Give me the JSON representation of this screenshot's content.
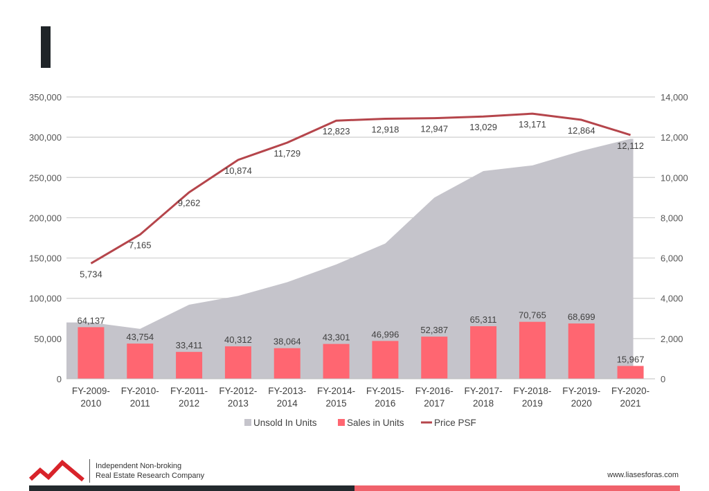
{
  "colors": {
    "unsold_area": "#c5c4cb",
    "sales_bar": "#ff6671",
    "price_line": "#b5454b",
    "grid": "#cfcfcf",
    "logo_red": "#d8232a",
    "band_dark": "#232a2e",
    "band_red": "#f0626b"
  },
  "footer": {
    "tagline_line1": "Independent Non-broking",
    "tagline_line2": "Real Estate Research Company",
    "url": "www.liasesforas.com",
    "logo_icon": "mountain-logo-icon"
  },
  "chart_data": {
    "type": "bar",
    "categories": [
      [
        "FY-2009-",
        "2010"
      ],
      [
        "FY-2010-",
        "2011"
      ],
      [
        "FY-2011-",
        "2012"
      ],
      [
        "FY-2012-",
        "2013"
      ],
      [
        "FY-2013-",
        "2014"
      ],
      [
        "FY-2014-",
        "2015"
      ],
      [
        "FY-2015-",
        "2016"
      ],
      [
        "FY-2016-",
        "2017"
      ],
      [
        "FY-2017-",
        "2018"
      ],
      [
        "FY-2018-",
        "2019"
      ],
      [
        "FY-2019-",
        "2020"
      ],
      [
        "FY-2020-",
        "2021"
      ]
    ],
    "series": [
      {
        "name": "Unsold In Units",
        "type": "area",
        "axis": "left",
        "values": [
          70000,
          62000,
          92000,
          103000,
          120000,
          142000,
          168000,
          225000,
          258000,
          265000,
          283000,
          298000
        ]
      },
      {
        "name": "Sales in Units",
        "type": "bar",
        "axis": "left",
        "values": [
          64137,
          43754,
          33411,
          40312,
          38064,
          43301,
          46996,
          52387,
          65311,
          70765,
          68699,
          15967
        ],
        "labels": [
          "64,137",
          "43,754",
          "33,411",
          "40,312",
          "38,064",
          "43,301",
          "46,996",
          "52,387",
          "65,311",
          "70,765",
          "68,699",
          "15,967"
        ]
      },
      {
        "name": "Price PSF",
        "type": "line",
        "axis": "right",
        "values": [
          5734,
          7165,
          9262,
          10874,
          11729,
          12823,
          12918,
          12947,
          13029,
          13171,
          12864,
          12112
        ],
        "labels": [
          "5,734",
          "7,165",
          "9,262",
          "10,874",
          "11,729",
          "12,823",
          "12,918",
          "12,947",
          "13,029",
          "13,171",
          "12,864",
          "12,112"
        ]
      }
    ],
    "y_left": {
      "min": 0,
      "max": 350000,
      "ticks": [
        "0",
        "50,000",
        "100,000",
        "150,000",
        "200,000",
        "250,000",
        "300,000",
        "350,000"
      ]
    },
    "y_right": {
      "min": 0,
      "max": 14000,
      "ticks": [
        "0",
        "2,000",
        "4,000",
        "6,000",
        "8,000",
        "10,000",
        "12,000",
        "14,000"
      ]
    },
    "grid": true,
    "legend_position": "bottom"
  }
}
